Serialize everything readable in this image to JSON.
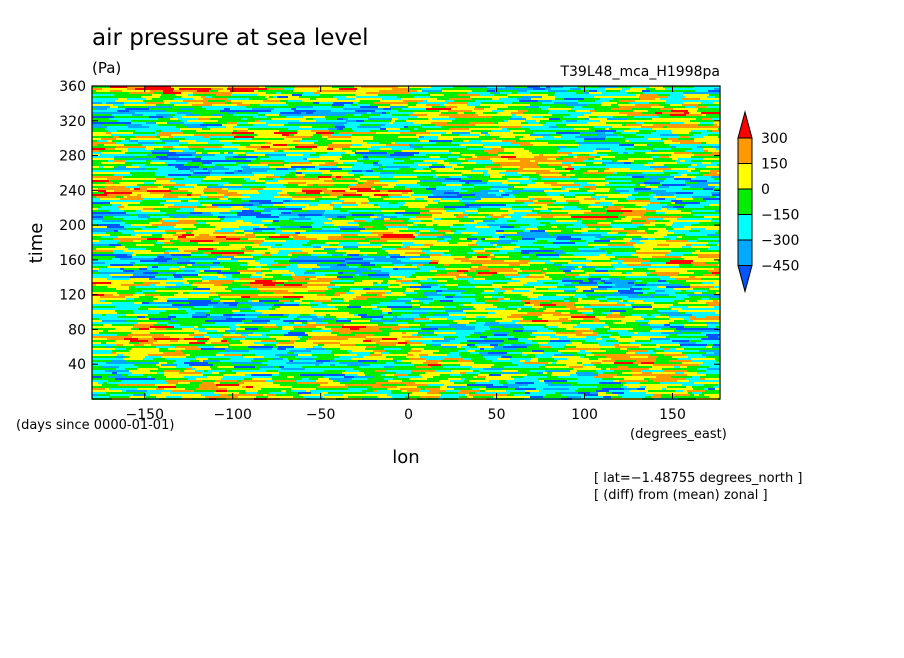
{
  "chart_data": {
    "type": "heatmap",
    "title": "air pressure at sea level",
    "units": "(Pa)",
    "experiment": "T39L48_mca_H1998pa",
    "xlabel": "lon",
    "xunits": "(degrees_east)",
    "ylabel": "time",
    "yunits": "(days since 0000-01-01)",
    "xlim": [
      -180,
      177
    ],
    "ylim": [
      0,
      360
    ],
    "xticks": [
      -150,
      -100,
      -50,
      0,
      50,
      100,
      150
    ],
    "yticks": [
      40,
      80,
      120,
      160,
      200,
      240,
      280,
      320,
      360
    ],
    "xtick_labels": [
      "−150",
      "−100",
      "−50",
      "0",
      "50",
      "100",
      "150"
    ],
    "ytick_labels": [
      "40",
      "80",
      "120",
      "160",
      "200",
      "240",
      "280",
      "320",
      "360"
    ],
    "colorbar": {
      "levels": [
        300,
        150,
        0,
        -150,
        -300,
        -450
      ],
      "labels": [
        "300",
        "150",
        "0",
        "−150",
        "−300",
        "−450"
      ],
      "colors": [
        "#ff0000",
        "#ff9900",
        "#ffff00",
        "#00ee00",
        "#00ffff",
        "#00aaff",
        "#0055ff"
      ]
    },
    "notes": [
      "[ lat=−1.48755 degrees_north ]",
      "[ (diff) from (mean) zonal ]"
    ]
  }
}
